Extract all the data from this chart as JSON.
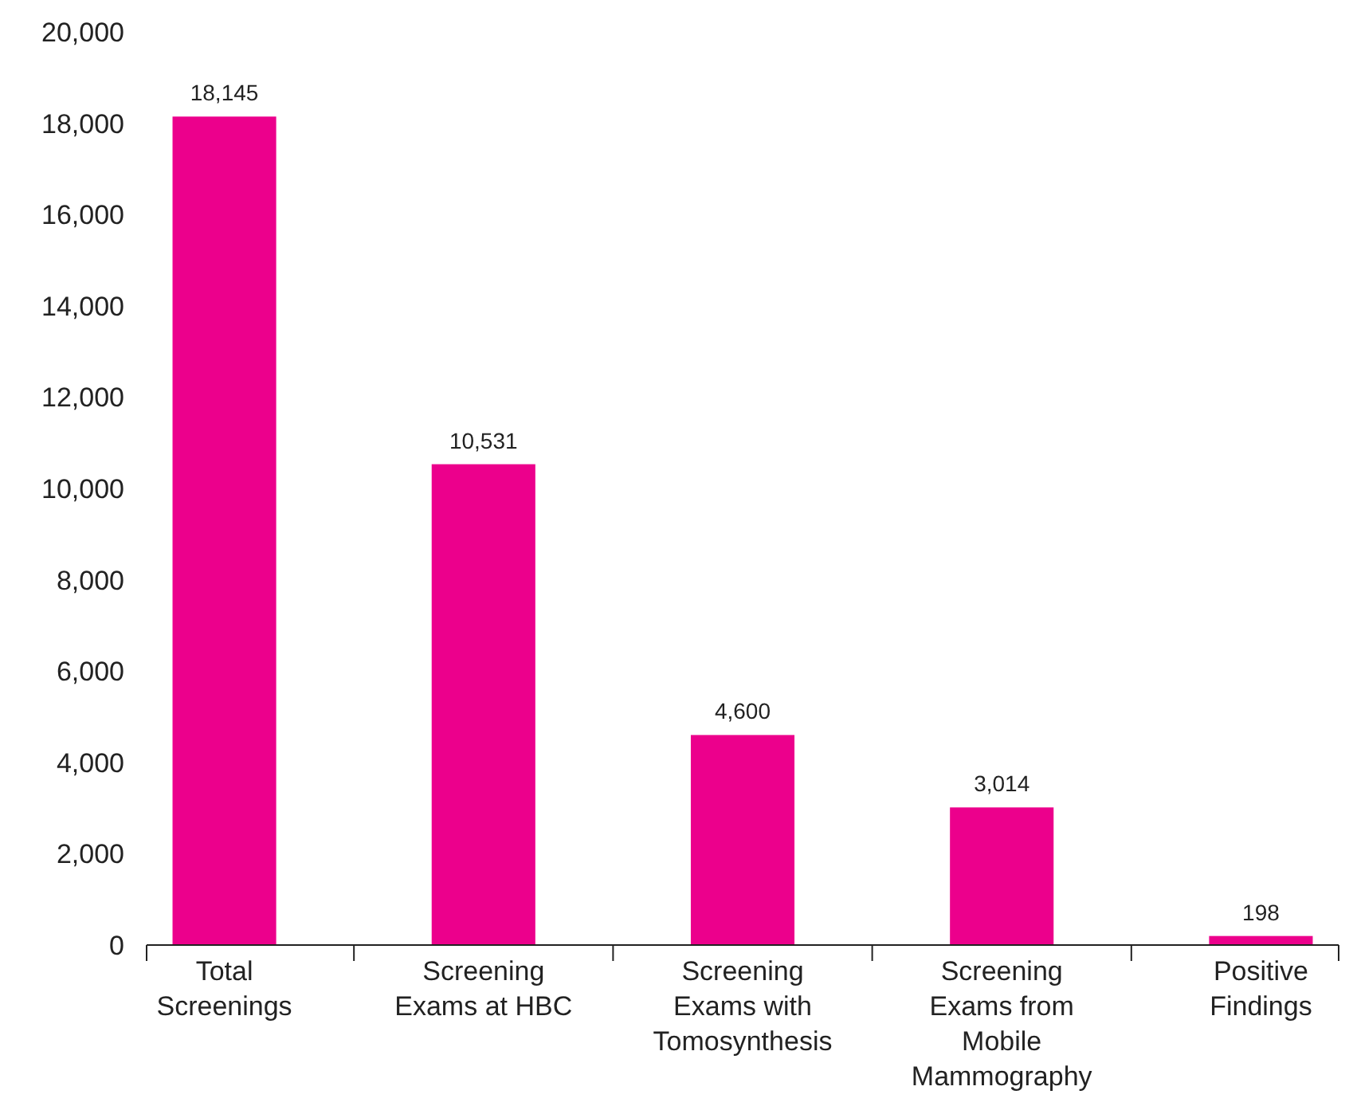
{
  "chart_data": {
    "type": "bar",
    "categories": [
      "Total Screenings",
      "Screening Exams at HBC",
      "Screening Exams with Tomosynthesis",
      "Screening Exams from Mobile Mammography",
      "Positive Findings"
    ],
    "values": [
      18145,
      10531,
      4600,
      3014,
      198
    ],
    "color": "#ec008c",
    "ylim": [
      0,
      20000
    ],
    "yticks": [
      {
        "value": 0,
        "label": "0"
      },
      {
        "value": 2000,
        "label": "2,000"
      },
      {
        "value": 4000,
        "label": "4,000"
      },
      {
        "value": 6000,
        "label": "6,000"
      },
      {
        "value": 8000,
        "label": "8,000"
      },
      {
        "value": 10000,
        "label": "10,000"
      },
      {
        "value": 12000,
        "label": "12,000"
      },
      {
        "value": 14000,
        "label": "14,000"
      },
      {
        "value": 16000,
        "label": "16,000"
      },
      {
        "value": 18000,
        "label": "18,000"
      },
      {
        "value": 20000,
        "label": "20,000"
      }
    ],
    "value_labels": [
      "18,145",
      "10,531",
      "4,600",
      "3,014",
      "198"
    ],
    "grid": false
  }
}
